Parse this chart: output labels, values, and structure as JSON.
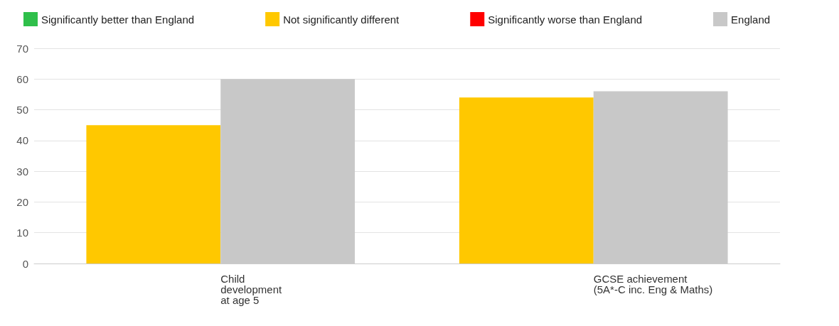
{
  "chart_data": {
    "type": "bar",
    "categories": [
      "Child\ndevelopment\nat age 5",
      "GCSE achievement\n(5A*-C inc. Eng & Maths)"
    ],
    "series": [
      {
        "name": "Significantly better than England",
        "color": "#2fbf4a",
        "values": [
          null,
          null
        ]
      },
      {
        "name": "Not significantly different",
        "color": "#ffc800",
        "values": [
          45,
          54
        ]
      },
      {
        "name": "Significantly worse than England",
        "color": "#ff0000",
        "values": [
          null,
          null
        ]
      },
      {
        "name": "England",
        "color": "#c8c8c8",
        "values": [
          60,
          56
        ]
      }
    ],
    "ylim": [
      0,
      70
    ],
    "yticks": [
      0,
      10,
      20,
      30,
      40,
      50,
      60,
      70
    ],
    "grid": "y",
    "legend": "top"
  }
}
